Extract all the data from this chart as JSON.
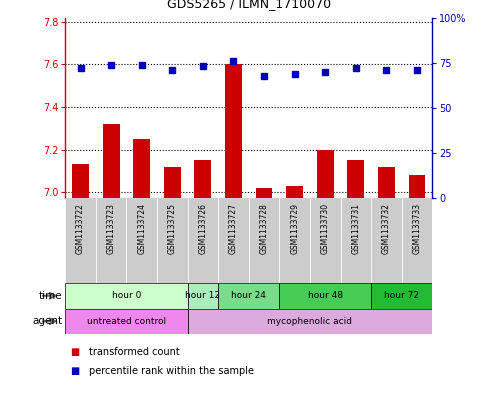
{
  "title": "GDS5265 / ILMN_1710070",
  "samples": [
    "GSM1133722",
    "GSM1133723",
    "GSM1133724",
    "GSM1133725",
    "GSM1133726",
    "GSM1133727",
    "GSM1133728",
    "GSM1133729",
    "GSM1133730",
    "GSM1133731",
    "GSM1133732",
    "GSM1133733"
  ],
  "transformed_count": [
    7.13,
    7.32,
    7.25,
    7.12,
    7.15,
    7.6,
    7.02,
    7.03,
    7.2,
    7.15,
    7.12,
    7.08
  ],
  "percentile_rank": [
    72,
    74,
    74,
    71,
    73,
    76,
    68,
    69,
    70,
    72,
    71,
    71
  ],
  "ylim_left": [
    6.97,
    7.82
  ],
  "ylim_right": [
    0,
    100
  ],
  "yticks_left": [
    7.0,
    7.2,
    7.4,
    7.6,
    7.8
  ],
  "yticks_right": [
    0,
    25,
    50,
    75,
    100
  ],
  "bar_color": "#cc0000",
  "dot_color": "#0000bb",
  "time_groups": [
    {
      "label": "hour 0",
      "start": 0,
      "end": 3,
      "color": "#ccffcc"
    },
    {
      "label": "hour 12",
      "start": 4,
      "end": 4,
      "color": "#aaeebb"
    },
    {
      "label": "hour 24",
      "start": 5,
      "end": 6,
      "color": "#77dd88"
    },
    {
      "label": "hour 48",
      "start": 7,
      "end": 9,
      "color": "#44cc55"
    },
    {
      "label": "hour 72",
      "start": 10,
      "end": 11,
      "color": "#22bb33"
    }
  ],
  "agent_groups": [
    {
      "label": "untreated control",
      "start": 0,
      "end": 3,
      "color": "#ee88ee"
    },
    {
      "label": "mycophenolic acid",
      "start": 4,
      "end": 11,
      "color": "#ddaadd"
    }
  ],
  "sample_bg_color": "#cccccc",
  "sample_border_color": "#ffffff",
  "main_border_color": "#000000",
  "row_border_color": "#000000"
}
